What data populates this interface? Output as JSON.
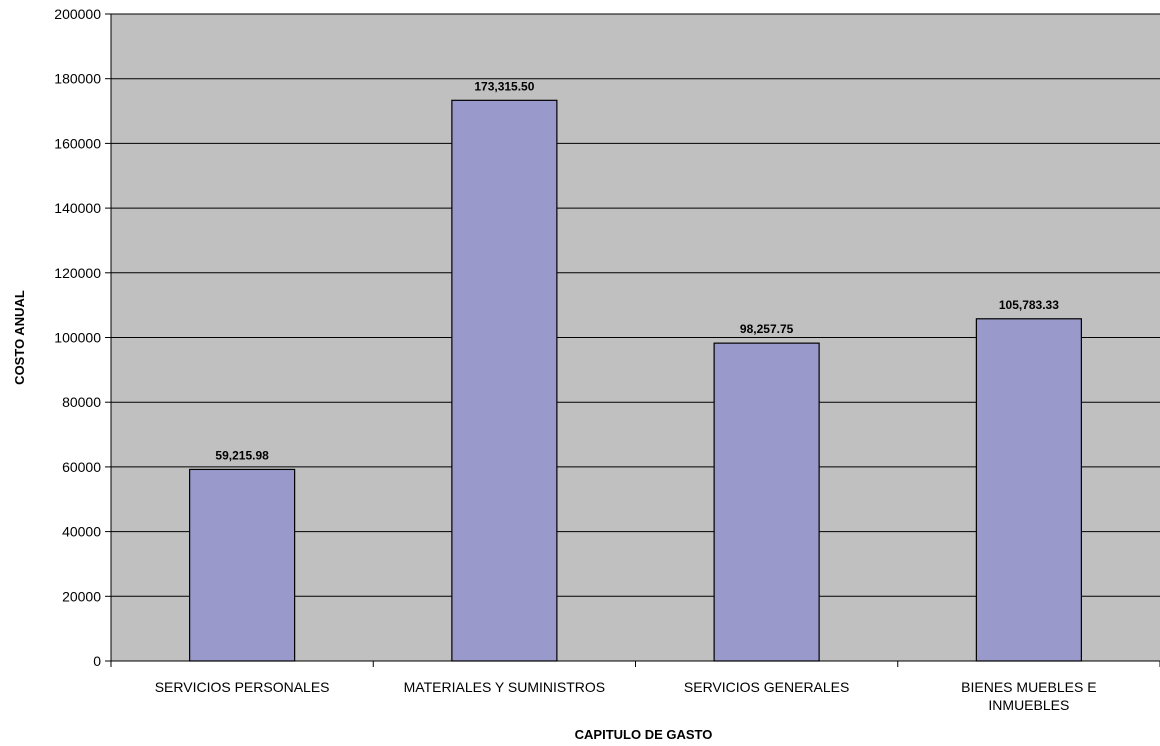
{
  "chart_data": {
    "type": "bar",
    "title": "",
    "xlabel": "CAPITULO DE GASTO",
    "ylabel": "COSTO ANUAL",
    "categories": [
      [
        "SERVICIOS PERSONALES"
      ],
      [
        "MATERIALES Y SUMINISTROS"
      ],
      [
        "SERVICIOS GENERALES"
      ],
      [
        "BIENES MUEBLES E",
        "INMUEBLES"
      ]
    ],
    "values": [
      59215.98,
      173315.5,
      98257.75,
      105783.33
    ],
    "data_labels": [
      "59,215.98",
      "173,315.50",
      "98,257.75",
      "105,783.33"
    ],
    "ylim": [
      0,
      200000
    ],
    "yticks": [
      0,
      20000,
      40000,
      60000,
      80000,
      100000,
      120000,
      140000,
      160000,
      180000,
      200000
    ],
    "ytick_labels": [
      "0",
      "20000",
      "40000",
      "60000",
      "80000",
      "100000",
      "120000",
      "140000",
      "160000",
      "180000",
      "200000"
    ],
    "grid": true,
    "legend": "none",
    "colors": {
      "plot_background": "#c0c0c0",
      "bar_fill": "#9999cc",
      "bar_stroke": "#000000",
      "gridline": "#000000"
    }
  }
}
